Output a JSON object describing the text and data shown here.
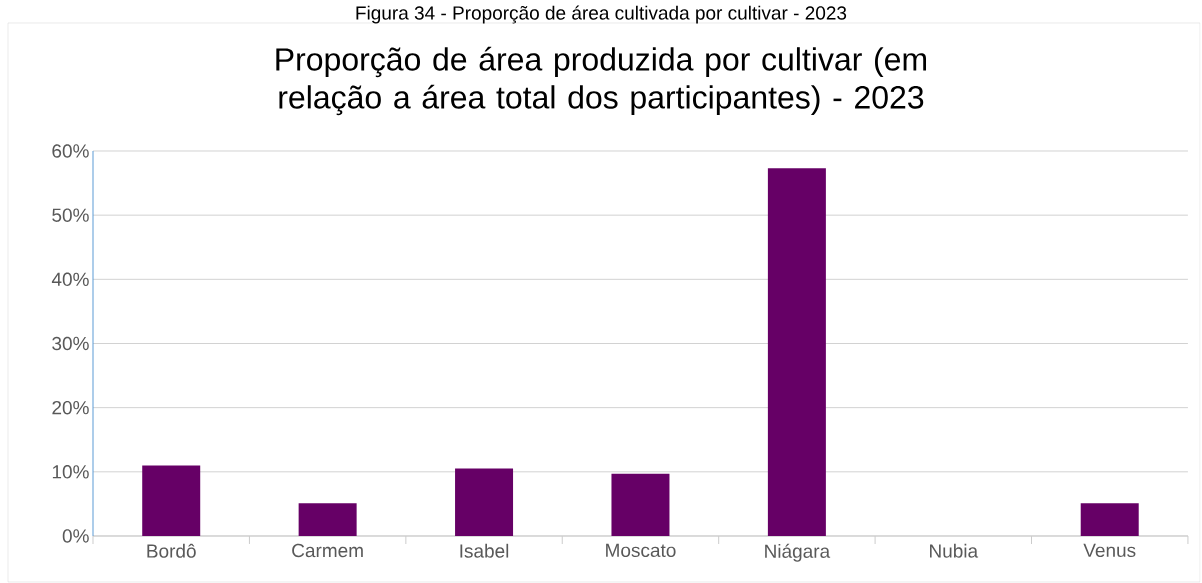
{
  "chart_data": {
    "type": "bar",
    "title": "Proporção de área produzida por cultivar (em relação a área total dos participantes) - 2023",
    "annotations": [
      "Figura 34 - Proporção de área cultivada por cultivar - 2023"
    ],
    "categories": [
      "Bordô",
      "Carmem",
      "Isabel",
      "Moscato",
      "Niágara",
      "Nubia",
      "Venus"
    ],
    "values": [
      11.0,
      5.1,
      10.5,
      9.7,
      57.3,
      0,
      5.1
    ],
    "color": "#660066",
    "ylim": [
      0,
      60
    ],
    "yticks": [
      {
        "value": 0,
        "label": "0%"
      },
      {
        "value": 10,
        "label": "10%"
      },
      {
        "value": 20,
        "label": "20%"
      },
      {
        "value": 30,
        "label": "30%"
      },
      {
        "value": 40,
        "label": "40%"
      },
      {
        "value": 50,
        "label": "50%"
      },
      {
        "value": 60,
        "label": "60%"
      }
    ],
    "grid": "y"
  }
}
